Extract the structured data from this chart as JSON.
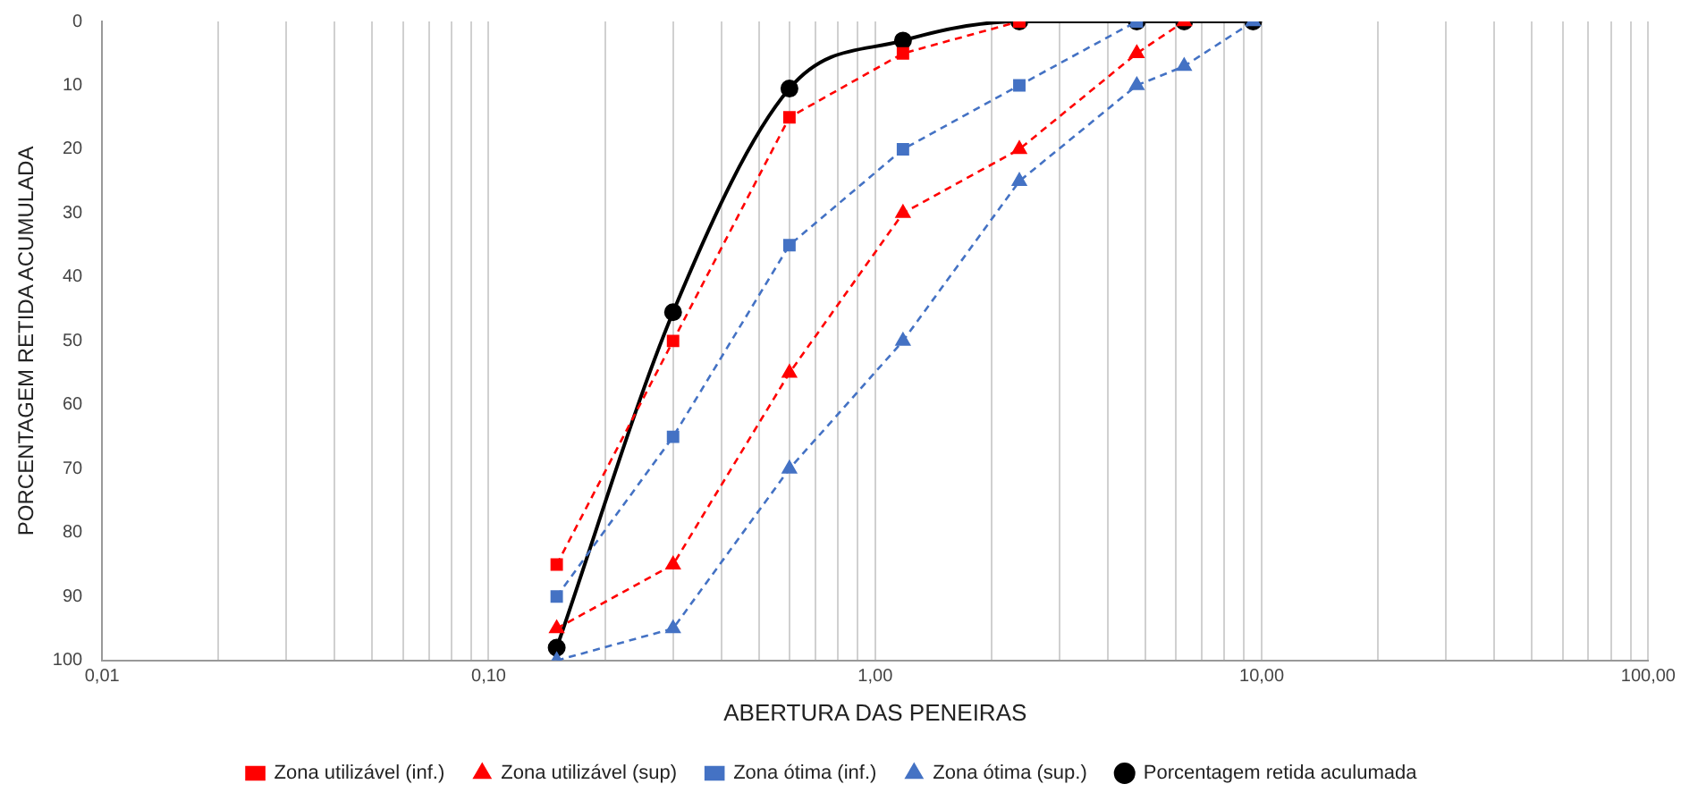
{
  "chart_data": {
    "type": "line",
    "xlabel": "ABERTURA DAS PENEIRAS",
    "ylabel": "PORCENTAGEM RETIDA ACUMULADA",
    "log": "x",
    "grid": "x",
    "legend": "bottom",
    "xlim": [
      0.01,
      100
    ],
    "ylim": [
      100,
      0
    ],
    "xticks": [
      {
        "value": 0.01,
        "label": "0,01"
      },
      {
        "value": 0.02,
        "label": null
      },
      {
        "value": 0.03,
        "label": null
      },
      {
        "value": 0.04,
        "label": null
      },
      {
        "value": 0.05,
        "label": null
      },
      {
        "value": 0.06,
        "label": null
      },
      {
        "value": 0.07,
        "label": null
      },
      {
        "value": 0.08,
        "label": null
      },
      {
        "value": 0.09,
        "label": null
      },
      {
        "value": 0.1,
        "label": "0,10"
      },
      {
        "value": 0.2,
        "label": null
      },
      {
        "value": 0.3,
        "label": null
      },
      {
        "value": 0.4,
        "label": null
      },
      {
        "value": 0.5,
        "label": null
      },
      {
        "value": 0.6,
        "label": null
      },
      {
        "value": 0.7,
        "label": null
      },
      {
        "value": 0.8,
        "label": null
      },
      {
        "value": 0.9,
        "label": null
      },
      {
        "value": 1,
        "label": "1,00"
      },
      {
        "value": 2,
        "label": null
      },
      {
        "value": 3,
        "label": null
      },
      {
        "value": 4,
        "label": null
      },
      {
        "value": 5,
        "label": null
      },
      {
        "value": 6,
        "label": null
      },
      {
        "value": 7,
        "label": null
      },
      {
        "value": 8,
        "label": null
      },
      {
        "value": 9,
        "label": null
      },
      {
        "value": 10,
        "label": "10,00"
      },
      {
        "value": 20,
        "label": null
      },
      {
        "value": 30,
        "label": null
      },
      {
        "value": 40,
        "label": null
      },
      {
        "value": 50,
        "label": null
      },
      {
        "value": 60,
        "label": null
      },
      {
        "value": 70,
        "label": null
      },
      {
        "value": 80,
        "label": null
      },
      {
        "value": 90,
        "label": null
      },
      {
        "value": 100,
        "label": "100,00"
      }
    ],
    "yticks": [
      0,
      10,
      20,
      30,
      40,
      50,
      60,
      70,
      80,
      90,
      100
    ],
    "x": [
      0.15,
      0.3,
      0.6,
      1.18,
      2.36,
      4.75,
      6.3,
      9.5
    ],
    "series": [
      {
        "name": "Zona utilizável (inf.)",
        "color": "#ff0000",
        "marker": "square",
        "line_style": "dashed",
        "x": [
          0.15,
          0.3,
          0.6,
          1.18,
          2.36
        ],
        "values": [
          85,
          50,
          15,
          5,
          0
        ]
      },
      {
        "name": "Zona utilizável (sup)",
        "color": "#ff0000",
        "marker": "triangle",
        "line_style": "dashed",
        "x": [
          0.15,
          0.3,
          0.6,
          1.18,
          2.36,
          4.75,
          6.3
        ],
        "values": [
          95,
          85,
          55,
          30,
          20,
          5,
          0
        ]
      },
      {
        "name": "Zona ótima (inf.)",
        "color": "#4472c4",
        "marker": "square",
        "line_style": "dashed",
        "x": [
          0.15,
          0.3,
          0.6,
          1.18,
          2.36,
          4.75
        ],
        "values": [
          90,
          65,
          35,
          20,
          10,
          0
        ]
      },
      {
        "name": "Zona ótima (sup.)",
        "color": "#4472c4",
        "marker": "triangle",
        "line_style": "dashed",
        "x": [
          0.15,
          0.3,
          0.6,
          1.18,
          2.36,
          4.75,
          6.3,
          9.5
        ],
        "values": [
          100,
          95,
          70,
          50,
          25,
          10,
          7,
          0
        ]
      },
      {
        "name": "Porcentagem retida aculumada",
        "color": "#000000",
        "marker": "circle",
        "line_style": "solid",
        "values": [
          98,
          45.5,
          10.5,
          3,
          0,
          0,
          0,
          0
        ]
      }
    ]
  }
}
